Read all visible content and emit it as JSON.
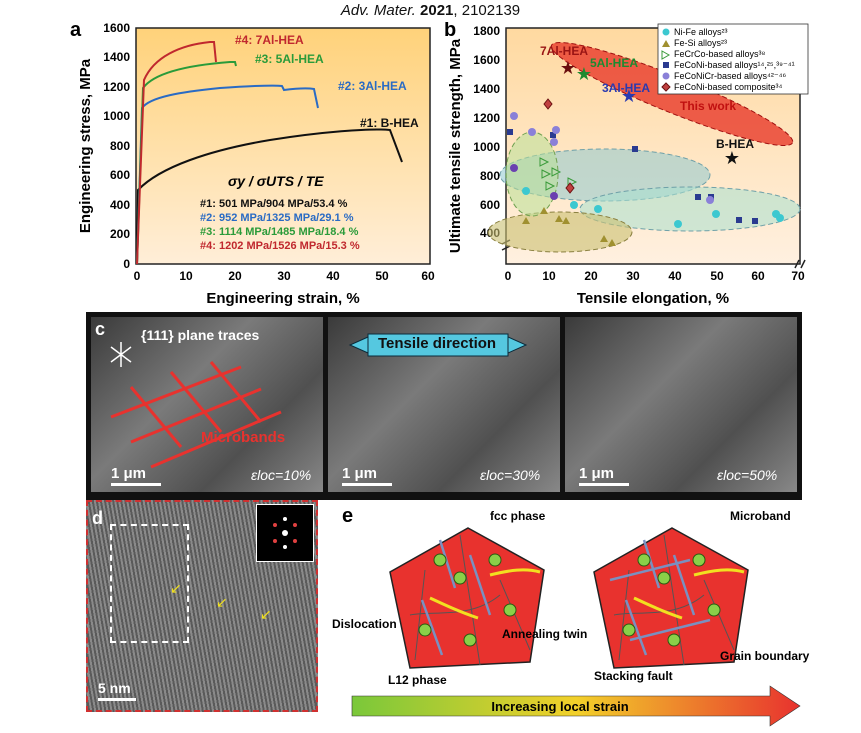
{
  "header": {
    "journal": "Adv. Mater.",
    "year": "2021",
    "article": "2102139"
  },
  "panel_a": {
    "letter": "a",
    "xlabel": "Engineering strain, %",
    "ylabel": "Engineering stress, MPa",
    "xticks": [
      "0",
      "10",
      "20",
      "30",
      "40",
      "50",
      "60"
    ],
    "yticks": [
      "0",
      "200",
      "400",
      "600",
      "800",
      "1000",
      "1200",
      "1400",
      "1600"
    ],
    "curve_labels": [
      "#4: 7Al-HEA",
      "#3: 5Al-HEA",
      "#2: 3Al-HEA",
      "#1: B-HEA"
    ],
    "legend_header": "σy / σUTS / TE",
    "legend_rows": [
      "#1: 501 MPa/904 MPa/53.4 %",
      "#2: 952 MPa/1325 MPa/29.1 %",
      "#3: 1114 MPa/1485 MPa/18.4 %",
      "#4: 1202 MPa/1526 MPa/15.3 %"
    ],
    "colors": {
      "b": "#111111",
      "al3": "#2a6bc4",
      "al5": "#2a9b3a",
      "al7": "#c0282e"
    }
  },
  "panel_b": {
    "letter": "b",
    "xlabel": "Tensile elongation, %",
    "ylabel": "Ultimate tensile strength, MPa",
    "xticks": [
      "0",
      "10",
      "20",
      "30",
      "40",
      "50",
      "60",
      "70"
    ],
    "yticks": [
      "400",
      "600",
      "800",
      "1000",
      "1200",
      "1400",
      "1600",
      "1800"
    ],
    "star_labels": [
      "7Al-HEA",
      "5Al-HEA",
      "3Al-HEA",
      "B-HEA"
    ],
    "this_work": "This work",
    "legend": [
      "Ni-Fe alloys²³",
      "Fe-Si alloys²³",
      "FeCrCo-based alloys³⁸",
      "FeCoNi-based alloys¹⁴,²⁵,³⁹⁻⁴¹",
      "FeCoNiCr-based alloys⁴²⁻⁴⁶",
      "FeCoNi-based composite³⁴"
    ]
  },
  "panel_c": {
    "letter": "c",
    "plane_traces": "{111} plane traces",
    "tensile_direction": "Tensile direction",
    "microbands": "Microbands",
    "scale": "1 μm",
    "strains": [
      "εloc=10%",
      "εloc=30%",
      "εloc=50%"
    ]
  },
  "panel_d": {
    "letter": "d",
    "scale": "5 nm"
  },
  "panel_e": {
    "letter": "e",
    "labels": {
      "fcc": "fcc phase",
      "microband": "Microband",
      "dislocation": "Dislocation",
      "twin": "Annealing twin",
      "l12": "L12 phase",
      "stacking": "Stacking fault",
      "grain": "Grain boundary"
    },
    "arrow": "Increasing local strain"
  }
}
